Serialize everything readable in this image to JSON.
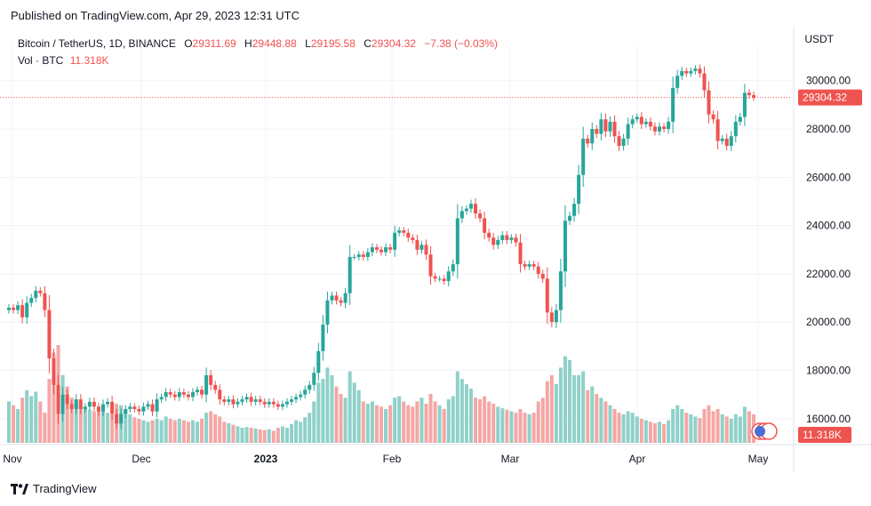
{
  "header": {
    "published": "Published on TradingView.com, Apr 29, 2023 12:31 UTC"
  },
  "legend": {
    "symbol": "Bitcoin / TetherUS, 1D, BINANCE",
    "open_label": "O",
    "open": "29311.69",
    "high_label": "H",
    "high": "29448.88",
    "low_label": "L",
    "low": "29195.58",
    "close_label": "C",
    "close": "29304.32",
    "change": "−7.38 (−0.03%)",
    "vol_label": "Vol · BTC",
    "vol_value": "11.318K"
  },
  "axis": {
    "unit": "USDT"
  },
  "footer": {
    "brand": "TradingView"
  },
  "colors": {
    "up": "#26a69a",
    "down": "#ef5350",
    "up_vol": "#8fd1c9",
    "down_vol": "#f4a7a5",
    "grid": "#f0f3fa",
    "price_line": "#ef5350"
  },
  "chart_data": {
    "type": "candlestick",
    "x_ticks": [
      "Nov",
      "Dec",
      "2023",
      "Feb",
      "Mar",
      "Apr",
      "May"
    ],
    "y_ticks": [
      "30000.00",
      "28000.00",
      "26000.00",
      "24000.00",
      "22000.00",
      "20000.00",
      "18000.00",
      "16000.00"
    ],
    "y_range": [
      15000,
      31500
    ],
    "last_price": "29304.32",
    "last_volume": "11.318K",
    "days": [
      {
        "c": 20600,
        "v": 55
      },
      {
        "c": 20500,
        "v": 50
      },
      {
        "c": 20700,
        "v": 45
      },
      {
        "c": 20200,
        "v": 60
      },
      {
        "c": 20800,
        "v": 70
      },
      {
        "c": 21000,
        "v": 62
      },
      {
        "c": 21300,
        "v": 68
      },
      {
        "c": 21200,
        "v": 55
      },
      {
        "c": 20500,
        "v": 40
      },
      {
        "c": 18500,
        "v": 85
      },
      {
        "c": 17400,
        "v": 120
      },
      {
        "c": 16200,
        "v": 130
      },
      {
        "c": 17000,
        "v": 90
      },
      {
        "c": 16600,
        "v": 75
      },
      {
        "c": 16400,
        "v": 60
      },
      {
        "c": 16800,
        "v": 58
      },
      {
        "c": 16400,
        "v": 50
      },
      {
        "c": 16500,
        "v": 46
      },
      {
        "c": 16700,
        "v": 44
      },
      {
        "c": 16500,
        "v": 42
      },
      {
        "c": 16300,
        "v": 48
      },
      {
        "c": 16600,
        "v": 46
      },
      {
        "c": 16700,
        "v": 40
      },
      {
        "c": 16200,
        "v": 38
      },
      {
        "c": 15800,
        "v": 52
      },
      {
        "c": 16200,
        "v": 50
      },
      {
        "c": 16400,
        "v": 42
      },
      {
        "c": 16500,
        "v": 38
      },
      {
        "c": 16400,
        "v": 34
      },
      {
        "c": 16300,
        "v": 32
      },
      {
        "c": 16500,
        "v": 30
      },
      {
        "c": 16600,
        "v": 28
      },
      {
        "c": 16300,
        "v": 30
      },
      {
        "c": 16800,
        "v": 32
      },
      {
        "c": 16900,
        "v": 30
      },
      {
        "c": 17100,
        "v": 35
      },
      {
        "c": 17000,
        "v": 32
      },
      {
        "c": 16900,
        "v": 30
      },
      {
        "c": 17100,
        "v": 32
      },
      {
        "c": 17000,
        "v": 30
      },
      {
        "c": 16900,
        "v": 28
      },
      {
        "c": 17100,
        "v": 30
      },
      {
        "c": 17200,
        "v": 28
      },
      {
        "c": 17000,
        "v": 32
      },
      {
        "c": 17800,
        "v": 40
      },
      {
        "c": 17400,
        "v": 42
      },
      {
        "c": 17200,
        "v": 38
      },
      {
        "c": 16800,
        "v": 35
      },
      {
        "c": 16700,
        "v": 28
      },
      {
        "c": 16800,
        "v": 26
      },
      {
        "c": 16600,
        "v": 24
      },
      {
        "c": 16700,
        "v": 22
      },
      {
        "c": 16800,
        "v": 20
      },
      {
        "c": 16900,
        "v": 21
      },
      {
        "c": 16700,
        "v": 20
      },
      {
        "c": 16800,
        "v": 19
      },
      {
        "c": 16700,
        "v": 18
      },
      {
        "c": 16600,
        "v": 17
      },
      {
        "c": 16700,
        "v": 18
      },
      {
        "c": 16600,
        "v": 16
      },
      {
        "c": 16500,
        "v": 20
      },
      {
        "c": 16600,
        "v": 22
      },
      {
        "c": 16700,
        "v": 20
      },
      {
        "c": 16800,
        "v": 25
      },
      {
        "c": 16900,
        "v": 30
      },
      {
        "c": 17000,
        "v": 28
      },
      {
        "c": 17200,
        "v": 34
      },
      {
        "c": 17400,
        "v": 40
      },
      {
        "c": 17900,
        "v": 55
      },
      {
        "c": 18800,
        "v": 80
      },
      {
        "c": 19900,
        "v": 85
      },
      {
        "c": 20900,
        "v": 100
      },
      {
        "c": 21100,
        "v": 90
      },
      {
        "c": 20900,
        "v": 75
      },
      {
        "c": 20800,
        "v": 65
      },
      {
        "c": 21200,
        "v": 60
      },
      {
        "c": 22700,
        "v": 95
      },
      {
        "c": 22700,
        "v": 80
      },
      {
        "c": 22800,
        "v": 70
      },
      {
        "c": 22700,
        "v": 55
      },
      {
        "c": 22900,
        "v": 52
      },
      {
        "c": 23100,
        "v": 55
      },
      {
        "c": 23000,
        "v": 50
      },
      {
        "c": 22900,
        "v": 48
      },
      {
        "c": 23100,
        "v": 45
      },
      {
        "c": 23000,
        "v": 50
      },
      {
        "c": 23700,
        "v": 60
      },
      {
        "c": 23800,
        "v": 62
      },
      {
        "c": 23700,
        "v": 55
      },
      {
        "c": 23500,
        "v": 50
      },
      {
        "c": 23400,
        "v": 48
      },
      {
        "c": 23000,
        "v": 55
      },
      {
        "c": 23200,
        "v": 60
      },
      {
        "c": 22800,
        "v": 52
      },
      {
        "c": 21900,
        "v": 65
      },
      {
        "c": 21800,
        "v": 55
      },
      {
        "c": 21800,
        "v": 50
      },
      {
        "c": 21700,
        "v": 45
      },
      {
        "c": 22100,
        "v": 58
      },
      {
        "c": 22400,
        "v": 62
      },
      {
        "c": 24300,
        "v": 95
      },
      {
        "c": 24600,
        "v": 85
      },
      {
        "c": 24700,
        "v": 78
      },
      {
        "c": 24900,
        "v": 72
      },
      {
        "c": 24500,
        "v": 60
      },
      {
        "c": 24300,
        "v": 58
      },
      {
        "c": 23700,
        "v": 62
      },
      {
        "c": 23500,
        "v": 55
      },
      {
        "c": 23200,
        "v": 52
      },
      {
        "c": 23400,
        "v": 48
      },
      {
        "c": 23600,
        "v": 46
      },
      {
        "c": 23400,
        "v": 44
      },
      {
        "c": 23500,
        "v": 42
      },
      {
        "c": 23300,
        "v": 40
      },
      {
        "c": 22400,
        "v": 45
      },
      {
        "c": 22300,
        "v": 40
      },
      {
        "c": 22400,
        "v": 38
      },
      {
        "c": 22300,
        "v": 40
      },
      {
        "c": 22000,
        "v": 55
      },
      {
        "c": 21800,
        "v": 60
      },
      {
        "c": 20400,
        "v": 82
      },
      {
        "c": 20000,
        "v": 90
      },
      {
        "c": 20500,
        "v": 78
      },
      {
        "c": 22100,
        "v": 100
      },
      {
        "c": 24200,
        "v": 115
      },
      {
        "c": 24400,
        "v": 110
      },
      {
        "c": 24900,
        "v": 90
      },
      {
        "c": 26100,
        "v": 90
      },
      {
        "c": 27600,
        "v": 95
      },
      {
        "c": 27400,
        "v": 70
      },
      {
        "c": 28000,
        "v": 75
      },
      {
        "c": 27800,
        "v": 65
      },
      {
        "c": 28400,
        "v": 60
      },
      {
        "c": 27900,
        "v": 55
      },
      {
        "c": 28300,
        "v": 50
      },
      {
        "c": 27700,
        "v": 45
      },
      {
        "c": 27300,
        "v": 40
      },
      {
        "c": 27600,
        "v": 38
      },
      {
        "c": 28200,
        "v": 42
      },
      {
        "c": 28400,
        "v": 40
      },
      {
        "c": 28500,
        "v": 35
      },
      {
        "c": 28200,
        "v": 32
      },
      {
        "c": 28300,
        "v": 30
      },
      {
        "c": 28100,
        "v": 28
      },
      {
        "c": 27900,
        "v": 26
      },
      {
        "c": 28100,
        "v": 28
      },
      {
        "c": 28000,
        "v": 25
      },
      {
        "c": 28300,
        "v": 30
      },
      {
        "c": 29700,
        "v": 45
      },
      {
        "c": 30200,
        "v": 50
      },
      {
        "c": 30400,
        "v": 45
      },
      {
        "c": 30300,
        "v": 40
      },
      {
        "c": 30400,
        "v": 38
      },
      {
        "c": 30500,
        "v": 35
      },
      {
        "c": 30300,
        "v": 33
      },
      {
        "c": 29600,
        "v": 45
      },
      {
        "c": 28600,
        "v": 50
      },
      {
        "c": 28400,
        "v": 42
      },
      {
        "c": 27500,
        "v": 45
      },
      {
        "c": 27600,
        "v": 38
      },
      {
        "c": 27300,
        "v": 35
      },
      {
        "c": 27700,
        "v": 32
      },
      {
        "c": 28300,
        "v": 38
      },
      {
        "c": 28500,
        "v": 35
      },
      {
        "c": 29500,
        "v": 48
      },
      {
        "c": 29400,
        "v": 42
      },
      {
        "c": 29300,
        "v": 38
      }
    ]
  }
}
